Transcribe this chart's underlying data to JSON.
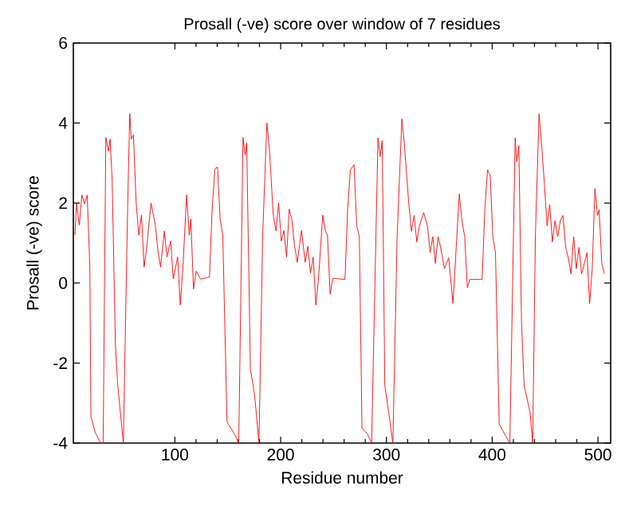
{
  "chart_data": {
    "type": "line",
    "title": "Prosall (-ve) score over window of 7 residues",
    "xlabel": "Residue number",
    "ylabel": "Prosall (-ve) score",
    "xlim": [
      4,
      512
    ],
    "ylim": [
      -4,
      6
    ],
    "xticks": [
      100,
      200,
      300,
      400,
      500
    ],
    "yticks": [
      -4,
      -2,
      0,
      2,
      4,
      6
    ],
    "grid": false,
    "marker": "none",
    "line_style": "solid",
    "series": [
      {
        "color": "#ff0000",
        "x": [
          5.5,
          7.0,
          9.6,
          12.1,
          14.6,
          17.1,
          19.6,
          20.6,
          24.6,
          29.7,
          32.2,
          34.7,
          37.2,
          38.7,
          40.7,
          43.7,
          45.8,
          49.8,
          51.3,
          54.8,
          57.3,
          58.8,
          60.8,
          63.4,
          65.9,
          68.4,
          70.9,
          73.4,
          77.4,
          81.5,
          84.0,
          86.5,
          90.0,
          92.5,
          96.0,
          98.5,
          102.6,
          105.1,
          107.6,
          111.1,
          113.6,
          115.1,
          117.6,
          120.2,
          124.2,
          132.7,
          135.2,
          137.8,
          140.3,
          142.8,
          145.3,
          149.3,
          155.3,
          160.4,
          164.4,
          166.4,
          167.9,
          171.4,
          175.4,
          179.5,
          183.0,
          187.0,
          189.5,
          193.0,
          195.6,
          198.1,
          200.6,
          203.1,
          205.6,
          208.1,
          210.6,
          213.2,
          215.7,
          219.7,
          223.2,
          225.7,
          228.2,
          230.8,
          233.3,
          235.8,
          239.8,
          242.3,
          244.3,
          246.8,
          249.3,
          260.8,
          263.3,
          265.9,
          269.4,
          271.9,
          274.4,
          276.9,
          282.0,
          286.0,
          292.0,
          294.0,
          296.0,
          298.5,
          302.1,
          306.1,
          310.1,
          314.6,
          317.1,
          321.2,
          323.7,
          326.2,
          328.7,
          331.2,
          335.2,
          338.8,
          341.3,
          343.8,
          346.3,
          348.8,
          351.3,
          354.8,
          358.9,
          362.9,
          365.4,
          368.9,
          371.4,
          374.0,
          376.5,
          379.0,
          390.5,
          393.0,
          395.6,
          398.1,
          400.6,
          403.1,
          406.6,
          411.6,
          416.7,
          421.7,
          423.2,
          425.2,
          427.7,
          430.2,
          435.8,
          438.3,
          440.8,
          444.3,
          446.8,
          449.3,
          451.9,
          454.4,
          456.9,
          459.4,
          461.9,
          464.4,
          466.9,
          469.5,
          472.0,
          474.5,
          477.0,
          479.5,
          482.0,
          484.5,
          487.1,
          489.6,
          492.1,
          494.6,
          497.1,
          499.6,
          501.1,
          503.6,
          506.1
        ],
        "values": [
          1.2,
          2.0,
          1.45,
          2.2,
          1.98,
          2.2,
          0.4,
          -3.33,
          -3.73,
          -4,
          -4,
          3.64,
          3.3,
          3.6,
          2.6,
          -1.5,
          -2.5,
          -3.6,
          -4,
          1.2,
          4.24,
          3.6,
          3.7,
          2.0,
          1.2,
          1.7,
          0.4,
          0.9,
          2.0,
          1.45,
          0.8,
          0.4,
          1.3,
          0.65,
          1.05,
          0.1,
          0.65,
          -0.55,
          0.4,
          2.2,
          1.2,
          1.6,
          -0.15,
          0.3,
          0.1,
          0.15,
          1.85,
          2.85,
          2.9,
          1.6,
          1.2,
          -3.47,
          -3.73,
          -4,
          3.64,
          3.2,
          3.5,
          -2.15,
          -2.8,
          -4,
          1.2,
          4.0,
          3.3,
          1.7,
          1.3,
          2.0,
          1.05,
          1.31,
          0.65,
          1.85,
          1.58,
          0.92,
          0.52,
          1.31,
          0.52,
          0.92,
          0.25,
          0.65,
          -0.55,
          0.12,
          1.7,
          1.31,
          1.18,
          -0.28,
          0.12,
          0.09,
          1.83,
          2.83,
          2.96,
          1.43,
          1.16,
          -3.63,
          -3.77,
          -4,
          3.63,
          3.16,
          3.56,
          -2.57,
          -3.23,
          -4,
          1.16,
          4.1,
          3.43,
          1.96,
          1.29,
          1.69,
          1.03,
          1.43,
          1.76,
          1.43,
          0.76,
          1.16,
          0.49,
          1.16,
          0.89,
          0.36,
          0.63,
          -0.51,
          0.63,
          2.23,
          1.56,
          1.16,
          -0.11,
          0.09,
          0.09,
          1.83,
          2.83,
          2.69,
          1.16,
          0.76,
          -3.52,
          -3.77,
          -4,
          3.63,
          3.03,
          3.43,
          -0.97,
          -2.57,
          -3.23,
          -4,
          1.16,
          4.23,
          3.43,
          2.49,
          1.43,
          1.96,
          1.03,
          1.56,
          1.16,
          1.56,
          1.69,
          0.89,
          0.63,
          0.23,
          1.16,
          0.36,
          0.89,
          0.23,
          0.49,
          0.76,
          -0.51,
          0.36,
          2.36,
          1.69,
          1.83,
          0.49,
          0.23
        ]
      }
    ]
  }
}
